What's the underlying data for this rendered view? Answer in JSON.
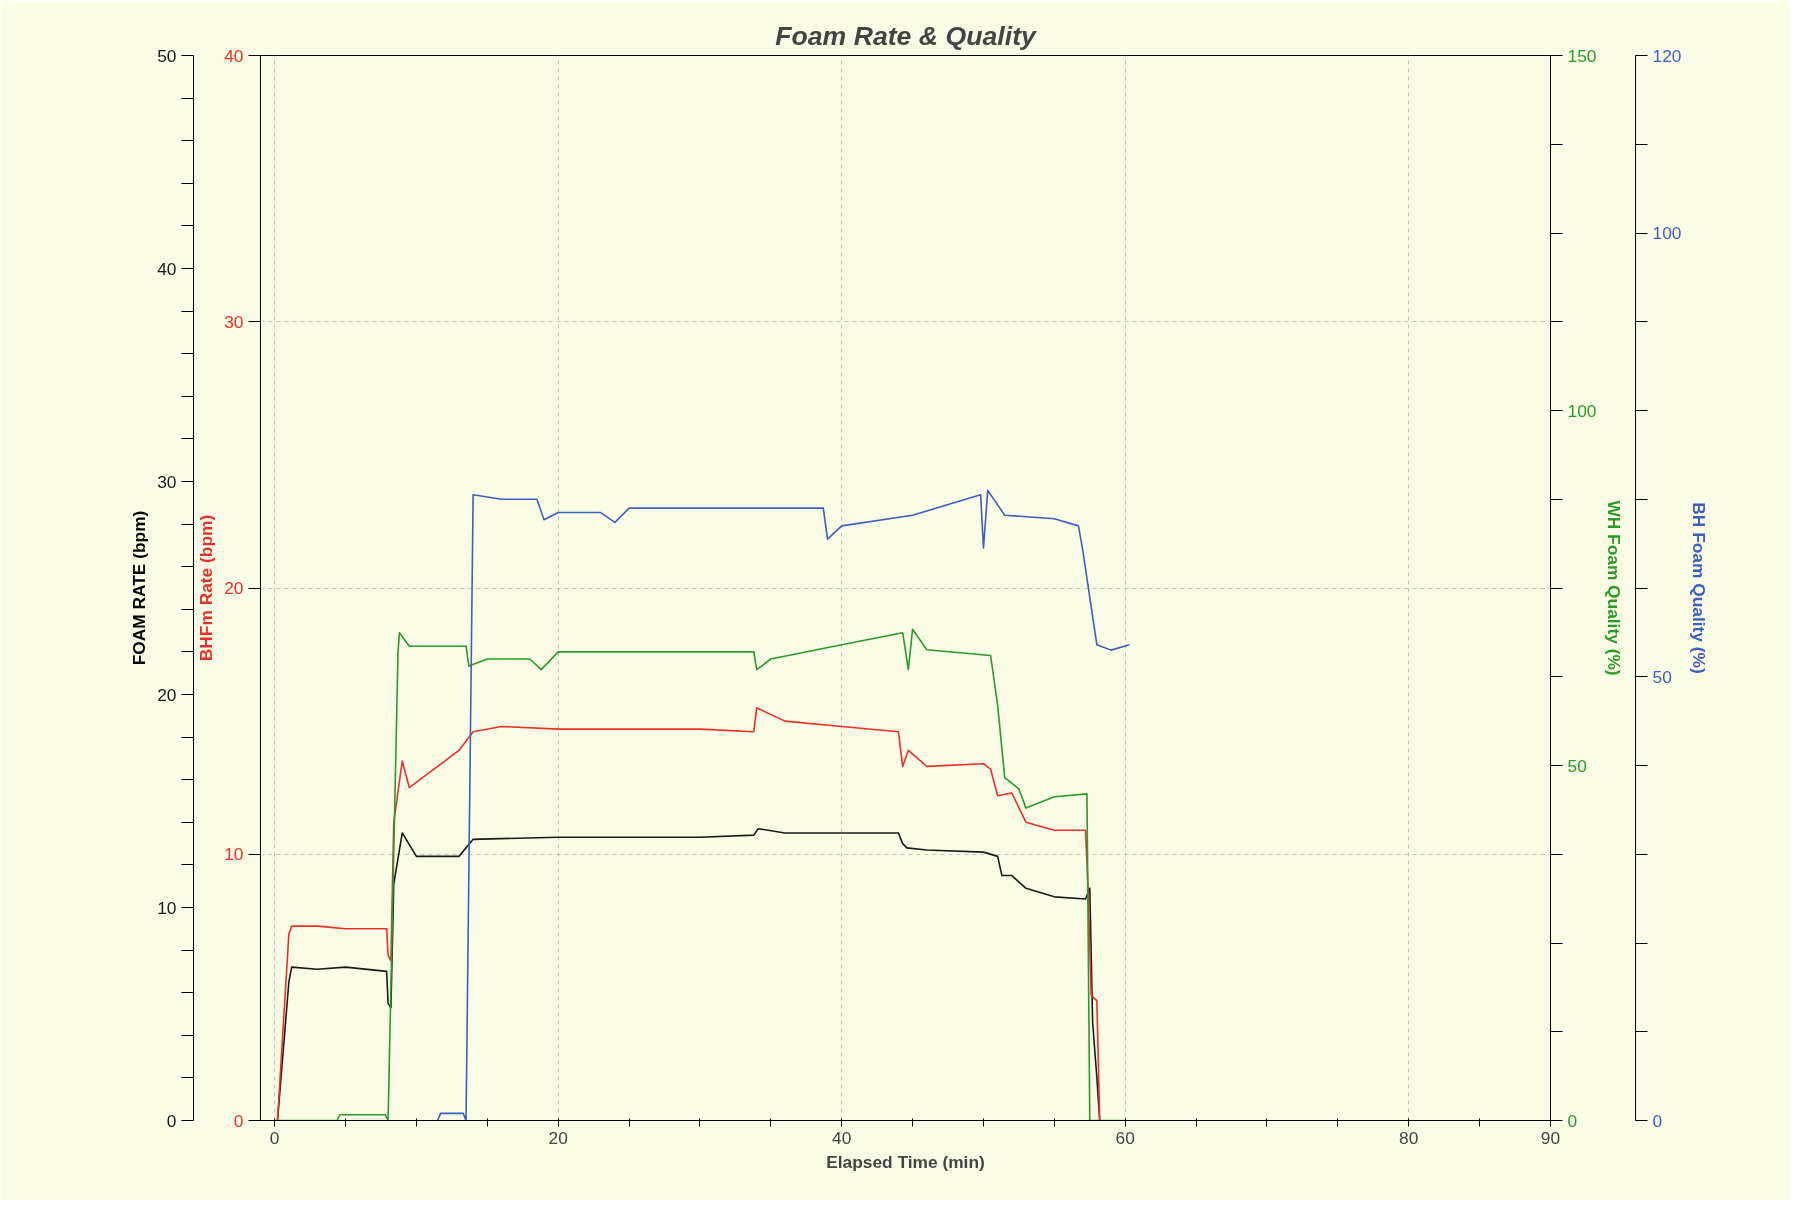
{
  "chart_data": [
    {
      "type": "line",
      "title": "Foam Rate & Quality",
      "xlabel": "Elapsed Time (min)",
      "ylabel": "BHFm Rate (bpm)",
      "y2label": "FOAM RATE (bpm)",
      "y3label": "WH Foam Quality (%)",
      "xlim": [
        -1,
        90
      ],
      "xticks": [
        0,
        {
          "value": 5,
          "label": null
        },
        {
          "value": 10,
          "label": null
        },
        {
          "value": 15,
          "label": null
        },
        20,
        {
          "value": 25,
          "label": null
        },
        {
          "value": 30,
          "label": null
        },
        {
          "value": 35,
          "label": null
        },
        40,
        {
          "value": 45,
          "label": null
        },
        {
          "value": 50,
          "label": null
        },
        {
          "value": 55,
          "label": null
        },
        60,
        {
          "value": 65,
          "label": null
        },
        {
          "value": 70,
          "label": null
        },
        {
          "value": 75,
          "label": null
        },
        80,
        {
          "value": 85,
          "label": null
        },
        90
      ],
      "ylim": [
        0,
        40
      ],
      "yticks": [
        0,
        10,
        20,
        30,
        40
      ],
      "y2lim": [
        0,
        50
      ],
      "y2ticks": [
        0,
        10,
        20,
        30,
        40,
        50
      ],
      "y3lim": [
        0,
        150
      ],
      "y3ticks": [
        0,
        {
          "value": 12.5,
          "label": null
        },
        {
          "value": 25,
          "label": null
        },
        {
          "value": 37.5,
          "label": null
        },
        50,
        {
          "value": 62.5,
          "label": null
        },
        {
          "value": 75,
          "label": null
        },
        {
          "value": 87.5,
          "label": null
        },
        100,
        {
          "value": 112.5,
          "label": null
        },
        {
          "value": 125,
          "label": null
        },
        {
          "value": 137.5,
          "label": null
        },
        150
      ],
      "grid": true,
      "line_style": "solid",
      "series": [
        {
          "color": "#1a1a1a",
          "axis": "y2",
          "x": [
            0.2,
            1,
            1.2,
            3,
            5,
            7.9,
            8,
            8.2,
            8.4,
            9,
            10,
            13,
            14,
            20,
            30,
            33.8,
            34.1,
            36,
            40,
            44,
            44.3,
            44.6,
            46,
            50,
            51,
            51.3,
            52,
            53,
            55,
            57.2,
            57.5,
            57.7,
            58,
            58.2
          ],
          "values": [
            0,
            6.5,
            7.2,
            7.1,
            7.2,
            7.0,
            5.5,
            5.3,
            11.1,
            13.5,
            12.4,
            12.4,
            13.2,
            13.3,
            13.3,
            13.4,
            13.7,
            13.5,
            13.5,
            13.5,
            13.0,
            12.8,
            12.7,
            12.6,
            12.4,
            11.5,
            11.5,
            10.9,
            10.5,
            10.4,
            10.9,
            4.6,
            2.0,
            0
          ]
        },
        {
          "color": "#e8302a",
          "x": [
            0.2,
            1,
            1.2,
            3,
            5,
            7.9,
            8,
            8.2,
            8.4,
            9,
            9.5,
            11,
            13,
            14,
            16,
            20,
            30,
            33.8,
            34,
            36,
            40,
            44,
            44.3,
            44.7,
            46,
            50,
            50.5,
            51,
            52,
            53,
            55,
            57.2,
            57.4,
            57.6,
            58,
            58.2
          ],
          "values": [
            0,
            7.0,
            7.3,
            7.3,
            7.2,
            7.2,
            6.2,
            6.0,
            11.2,
            13.5,
            12.5,
            13.1,
            13.9,
            14.6,
            14.8,
            14.7,
            14.7,
            14.6,
            15.5,
            15.0,
            14.8,
            14.6,
            13.3,
            13.9,
            13.3,
            13.4,
            13.2,
            12.2,
            12.3,
            11.2,
            10.9,
            10.9,
            8.5,
            4.7,
            4.5,
            0
          ]
        },
        {
          "color": "#2a9a2a",
          "axis": "y3",
          "x": [
            0,
            4.4,
            4.6,
            7.8,
            8,
            8.7,
            8.8,
            9.5,
            13.5,
            13.7,
            15,
            18,
            18.8,
            20,
            33.8,
            34,
            35,
            40,
            44.3,
            44.7,
            45,
            46,
            50.5,
            51,
            51.5,
            52.5,
            53,
            55,
            57.3,
            57.5,
            60
          ],
          "values": [
            0,
            0,
            0.8,
            0.8,
            0,
            66,
            68.7,
            66.8,
            66.8,
            64,
            65,
            65,
            63.5,
            66,
            66,
            63.5,
            65,
            67,
            68.7,
            63.5,
            69.2,
            66.3,
            65.5,
            58.5,
            48.3,
            46.7,
            44,
            45.6,
            46,
            0,
            0
          ]
        }
      ]
    },
    {
      "type": "line",
      "ylabel": "BH Foam Quality (%)",
      "xlim": [
        -1,
        90
      ],
      "ylim": [
        0,
        120
      ],
      "tick_labels": "y",
      "yticks": [
        0,
        {
          "value": 10,
          "label": null
        },
        {
          "value": 20,
          "label": null
        },
        {
          "value": 30,
          "label": null
        },
        {
          "value": 40,
          "label": null
        },
        50,
        {
          "value": 60,
          "label": null
        },
        {
          "value": 70,
          "label": null
        },
        {
          "value": 80,
          "label": null
        },
        {
          "value": 90,
          "label": null
        },
        100,
        {
          "value": 110,
          "label": null
        },
        120
      ],
      "line_style": "solid",
      "series": [
        {
          "color": "#3a5fbf",
          "x": [
            11.5,
            11.7,
            13.3,
            13.5,
            14,
            16,
            18.5,
            19,
            20,
            23,
            24,
            25,
            38.7,
            39,
            40,
            45,
            49.8,
            50,
            50.3,
            51.5,
            55,
            56.7,
            57,
            57.7,
            58,
            59,
            60.3
          ],
          "values": [
            0,
            0.8,
            0.8,
            0,
            70.5,
            70,
            70,
            67.7,
            68.5,
            68.5,
            67.4,
            69,
            69,
            65.5,
            67,
            68.2,
            70.5,
            64.5,
            71,
            68.2,
            67.8,
            67,
            64.3,
            56.8,
            53.6,
            53,
            53.6
          ]
        }
      ]
    }
  ]
}
